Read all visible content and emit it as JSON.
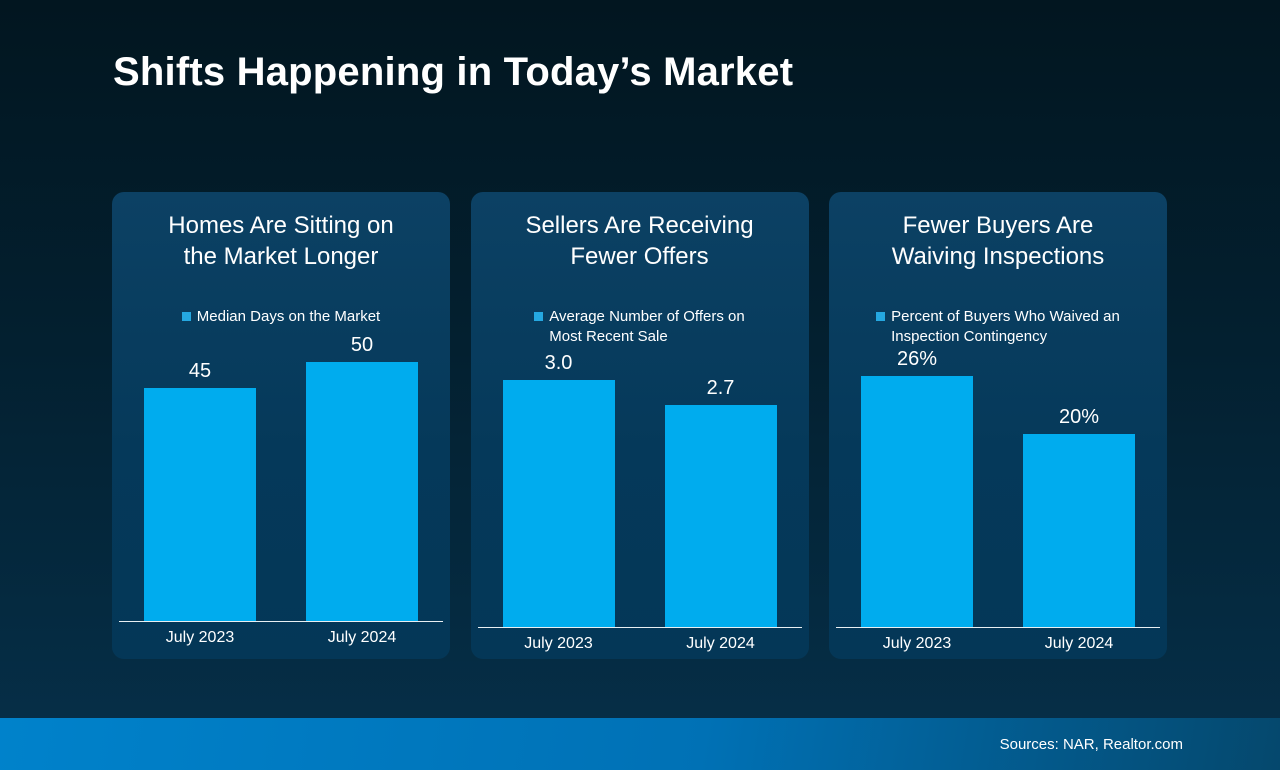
{
  "slide": {
    "title": "Shifts Happening in Today’s Market",
    "source_note": "Sources: NAR, Realtor.com"
  },
  "colors": {
    "background_top": "#021620",
    "background_bottom": "#06304a",
    "card_top": "#0c4164",
    "card_bg": "#05395a",
    "bar": "#00acee",
    "legend_marker": "#25a8e1",
    "baseline": "#e9eff2",
    "footer_left": "#0082cb",
    "footer_right": "#05486d"
  },
  "chart_data": [
    {
      "type": "bar",
      "title": "Homes Are Sitting on the Market Longer",
      "title_lines": [
        "Homes Are Sitting on",
        "the Market Longer"
      ],
      "legend_lines": [
        "Median Days on the Market"
      ],
      "legend_entry": "Median Days on the Market",
      "categories": [
        "July 2023",
        "July 2024"
      ],
      "values": [
        45,
        50
      ],
      "labels": [
        "45",
        "50"
      ],
      "ylim": [
        0,
        54
      ],
      "grid": false,
      "legend_position": "top"
    },
    {
      "type": "bar",
      "title": "Sellers Are Receiving Fewer Offers",
      "title_lines": [
        "Sellers Are Receiving",
        "Fewer Offers"
      ],
      "legend_lines": [
        "Average Number of Offers on",
        "Most Recent Sale"
      ],
      "legend_entry": "Average Number of Offers on Most Recent Sale",
      "categories": [
        "July 2023",
        "July 2024"
      ],
      "values": [
        3.0,
        2.7
      ],
      "labels": [
        "3.0",
        "2.7"
      ],
      "ylim": [
        0,
        3.4
      ],
      "grid": false,
      "legend_position": "top"
    },
    {
      "type": "bar",
      "title": "Fewer Buyers Are Waiving Inspections",
      "title_lines": [
        "Fewer Buyers Are",
        "Waiving Inspections"
      ],
      "legend_lines": [
        "Percent of Buyers Who Waived an",
        "Inspection Contingency"
      ],
      "legend_entry": "Percent of Buyers Who Waived an Inspection Contingency",
      "categories": [
        "July 2023",
        "July 2024"
      ],
      "values": [
        26,
        20
      ],
      "labels": [
        "26%",
        "20%"
      ],
      "ylim": [
        0,
        29
      ],
      "grid": false,
      "legend_position": "top"
    }
  ]
}
